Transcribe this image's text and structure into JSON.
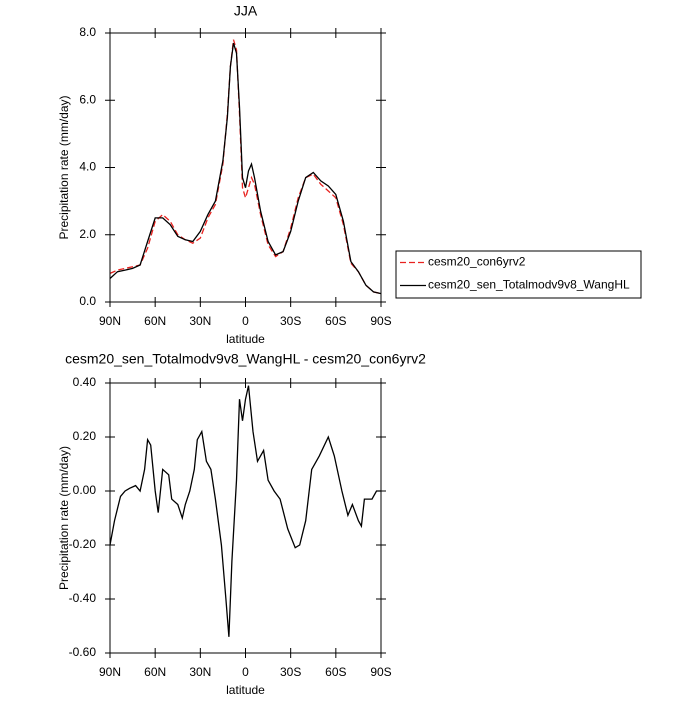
{
  "chart_data": [
    {
      "type": "line",
      "title": "JJA",
      "xlabel": "latitude",
      "ylabel": "Precipitation rate (mm/day)",
      "x": [
        90,
        85,
        80,
        75,
        70,
        65,
        60,
        55,
        50,
        45,
        40,
        35,
        30,
        25,
        20,
        15,
        12,
        10,
        8,
        6,
        4,
        2,
        0,
        -2,
        -4,
        -6,
        -10,
        -15,
        -20,
        -25,
        -30,
        -35,
        -40,
        -45,
        -50,
        -55,
        -60,
        -65,
        -70,
        -75,
        -80,
        -85,
        -90
      ],
      "series": [
        {
          "name": "cesm20_con6yrv2",
          "color": "#e8221f",
          "style": "dashed",
          "values": [
            0.85,
            0.95,
            1.0,
            1.05,
            1.1,
            1.6,
            2.4,
            2.6,
            2.4,
            2.0,
            1.85,
            1.75,
            1.9,
            2.5,
            2.9,
            4.1,
            5.6,
            7.0,
            7.8,
            7.5,
            5.6,
            3.4,
            3.1,
            3.4,
            3.7,
            3.5,
            2.6,
            1.7,
            1.35,
            1.5,
            2.2,
            3.1,
            3.7,
            3.8,
            3.5,
            3.3,
            3.1,
            2.3,
            1.15,
            0.9,
            0.5,
            0.3,
            0.25
          ]
        },
        {
          "name": "cesm20_sen_Totalmodv9v8_WangHL",
          "color": "#000000",
          "style": "solid",
          "values": [
            0.7,
            0.9,
            0.95,
            1.0,
            1.1,
            1.8,
            2.5,
            2.5,
            2.3,
            1.95,
            1.85,
            1.8,
            2.1,
            2.6,
            3.0,
            4.2,
            5.5,
            7.0,
            7.7,
            7.4,
            5.8,
            3.7,
            3.4,
            3.9,
            4.1,
            3.7,
            2.7,
            1.8,
            1.4,
            1.5,
            2.1,
            3.0,
            3.7,
            3.85,
            3.6,
            3.45,
            3.2,
            2.4,
            1.2,
            0.9,
            0.5,
            0.3,
            0.25
          ]
        }
      ],
      "xlim": [
        90,
        -90
      ],
      "xticks": [
        {
          "value": 90,
          "label": "90N"
        },
        {
          "value": 60,
          "label": "60N"
        },
        {
          "value": 30,
          "label": "30N"
        },
        0,
        {
          "value": -30,
          "label": "30S"
        },
        {
          "value": -60,
          "label": "60S"
        },
        {
          "value": -90,
          "label": "90S"
        }
      ],
      "ylim": [
        0,
        8
      ],
      "yticks": [
        {
          "value": 0,
          "label": "0.0"
        },
        {
          "value": 2,
          "label": "2.0"
        },
        {
          "value": 4,
          "label": "4.0"
        },
        {
          "value": 6,
          "label": "6.0"
        },
        {
          "value": 8,
          "label": "8.0"
        }
      ],
      "legend": "right"
    },
    {
      "type": "line",
      "title": "cesm20_sen_Totalmodv9v8_WangHL - cesm20_con6yrv2",
      "xlabel": "latitude",
      "ylabel": "Precipitation rate (mm/day)",
      "x": [
        90,
        87,
        83,
        80,
        77,
        73,
        70,
        67,
        65,
        63,
        60,
        58,
        55,
        51,
        49,
        45,
        42,
        40,
        37,
        34,
        32,
        29,
        26,
        23,
        20,
        16,
        13,
        11,
        9,
        6,
        4,
        2,
        0,
        -2,
        -5,
        -8,
        -12,
        -15,
        -19,
        -23,
        -28,
        -33,
        -36,
        -40,
        -44,
        -49,
        -55,
        -59,
        -64,
        -68,
        -71,
        -75,
        -77,
        -79,
        -84,
        -87,
        -90
      ],
      "series": [
        {
          "color": "#000000",
          "style": "solid",
          "values": [
            -0.2,
            -0.11,
            -0.02,
            0.0,
            0.01,
            0.02,
            0.0,
            0.08,
            0.19,
            0.17,
            0.0,
            -0.08,
            0.08,
            0.06,
            -0.03,
            -0.05,
            -0.1,
            -0.05,
            0.0,
            0.08,
            0.19,
            0.22,
            0.11,
            0.08,
            -0.03,
            -0.2,
            -0.4,
            -0.54,
            -0.26,
            0.04,
            0.34,
            0.26,
            0.34,
            0.39,
            0.22,
            0.11,
            0.15,
            0.04,
            0.0,
            -0.03,
            -0.14,
            -0.21,
            -0.2,
            -0.11,
            0.08,
            0.13,
            0.2,
            0.13,
            0.0,
            -0.09,
            -0.05,
            -0.11,
            -0.13,
            -0.03,
            -0.03,
            0.0,
            0.0
          ]
        }
      ],
      "xlim": [
        90,
        -90
      ],
      "xticks": [
        {
          "value": 90,
          "label": "90N"
        },
        {
          "value": 60,
          "label": "60N"
        },
        {
          "value": 30,
          "label": "30N"
        },
        0,
        {
          "value": -30,
          "label": "30S"
        },
        {
          "value": -60,
          "label": "60S"
        },
        {
          "value": -90,
          "label": "90S"
        }
      ],
      "ylim": [
        -0.6,
        0.4
      ],
      "yticks": [
        {
          "value": -0.6,
          "label": "-0.60"
        },
        {
          "value": -0.4,
          "label": "-0.40"
        },
        {
          "value": -0.2,
          "label": "-0.20"
        },
        {
          "value": 0,
          "label": "0.00"
        },
        {
          "value": 0.2,
          "label": "0.20"
        },
        {
          "value": 0.4,
          "label": "0.40"
        }
      ]
    }
  ]
}
